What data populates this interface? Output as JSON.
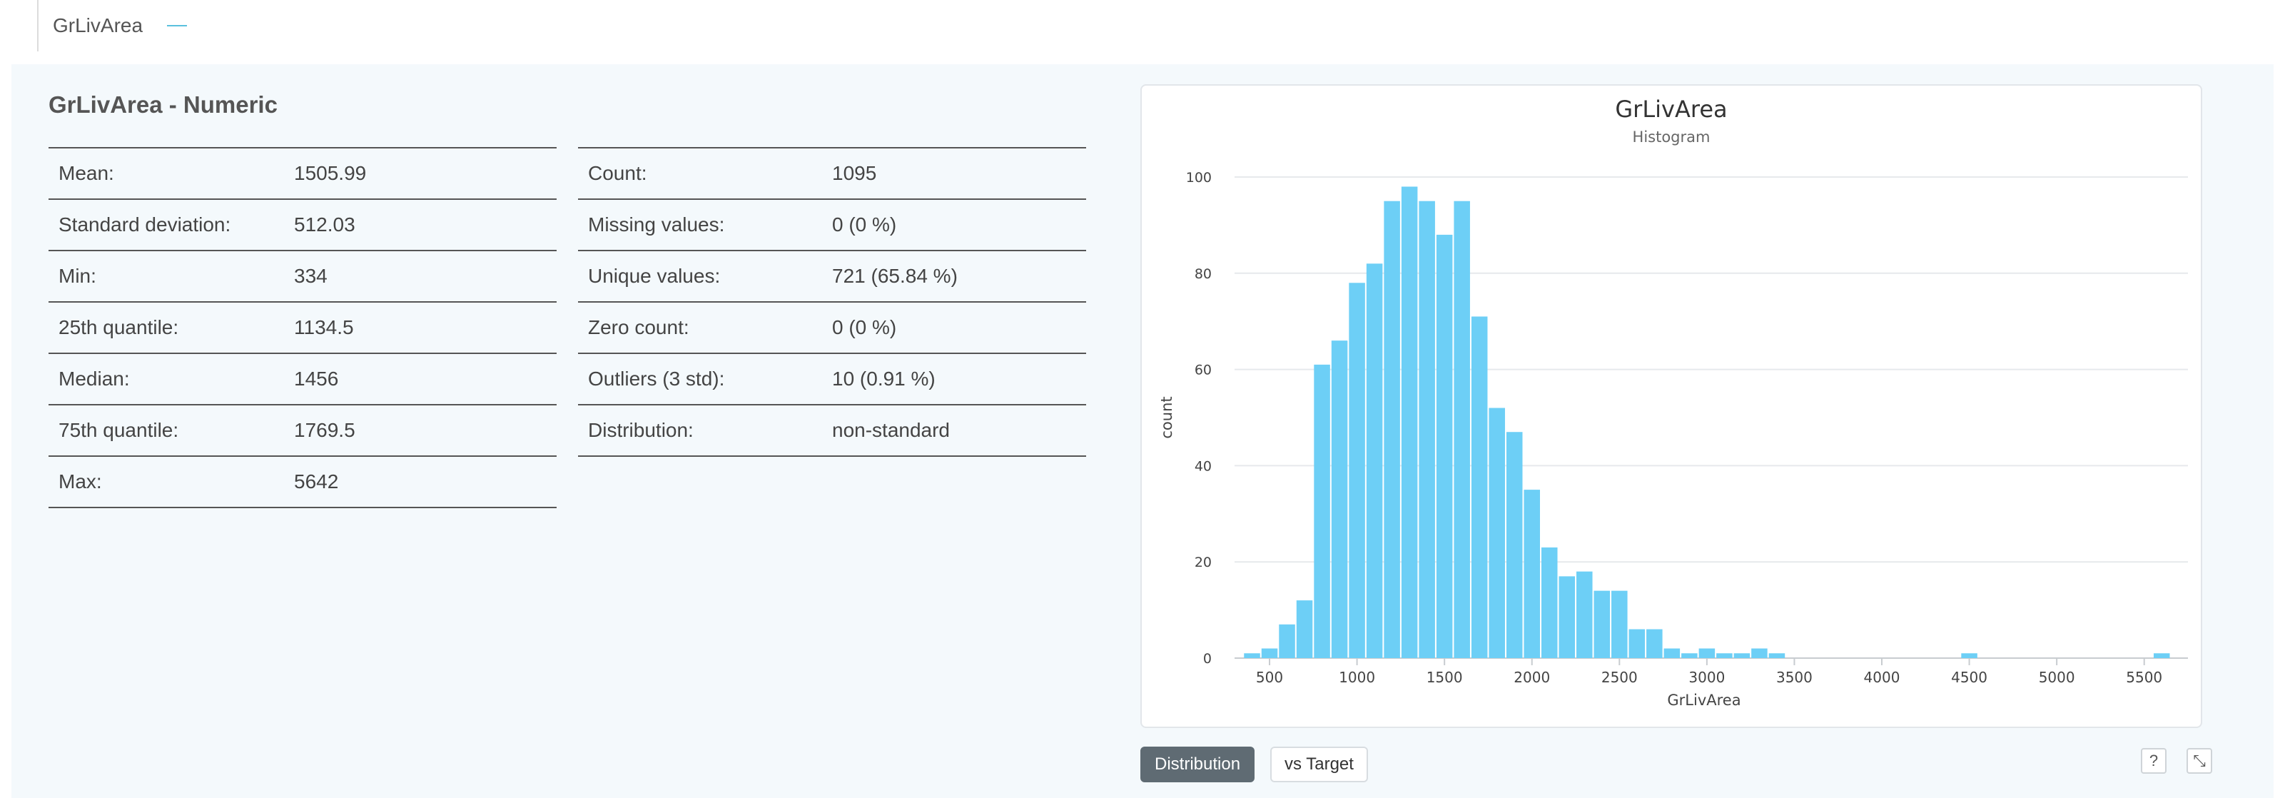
{
  "tab": {
    "label": "GrLivArea"
  },
  "title": "GrLivArea - Numeric",
  "stats_left": [
    {
      "label": "Mean:",
      "value": "1505.99"
    },
    {
      "label": "Standard deviation:",
      "value": "512.03"
    },
    {
      "label": "Min:",
      "value": "334"
    },
    {
      "label": "25th quantile:",
      "value": "1134.5"
    },
    {
      "label": "Median:",
      "value": "1456"
    },
    {
      "label": "75th quantile:",
      "value": "1769.5"
    },
    {
      "label": "Max:",
      "value": "5642"
    }
  ],
  "stats_right": [
    {
      "label": "Count:",
      "value": "1095"
    },
    {
      "label": "Missing values:",
      "value": "0 (0 %)"
    },
    {
      "label": "Unique values:",
      "value": "721 (65.84 %)"
    },
    {
      "label": "Zero count:",
      "value": "0 (0 %)"
    },
    {
      "label": "Outliers (3 std):",
      "value": "10 (0.91 %)"
    },
    {
      "label": "Distribution:",
      "value": "non-standard"
    }
  ],
  "chart_data": {
    "type": "bar",
    "title": "GrLivArea",
    "subtitle": "Histogram",
    "xlabel": "GrLivArea",
    "ylabel": "count",
    "bar_color": "#6dcff6",
    "bin_start": 350,
    "bin_width": 100,
    "values": [
      1,
      2,
      7,
      12,
      61,
      66,
      78,
      82,
      95,
      98,
      95,
      88,
      95,
      71,
      52,
      47,
      35,
      23,
      17,
      18,
      14,
      14,
      6,
      6,
      2,
      1,
      2,
      1,
      1,
      2,
      1,
      0,
      0,
      0,
      0,
      0,
      0,
      0,
      0,
      0,
      0,
      0,
      0,
      0,
      0,
      0,
      0,
      0,
      0,
      0,
      0,
      0,
      0,
      0,
      0,
      0,
      0,
      0,
      0,
      0,
      0,
      0,
      0
    ],
    "x_ticks": [
      500,
      1000,
      1500,
      2000,
      2500,
      3000,
      3500,
      4000,
      4500,
      5000,
      5500
    ],
    "y_ticks": [
      0,
      20,
      40,
      60,
      80,
      100
    ],
    "xlim": [
      300,
      5750
    ],
    "ylim": [
      0,
      100
    ],
    "extra_bins": [
      {
        "x0": 4450,
        "x1": 4550,
        "value": 1
      },
      {
        "x0": 5550,
        "x1": 5650,
        "value": 1
      }
    ]
  },
  "buttons": {
    "distribution": "Distribution",
    "vs_target": "vs Target",
    "help": "?",
    "expand": "⤡"
  }
}
